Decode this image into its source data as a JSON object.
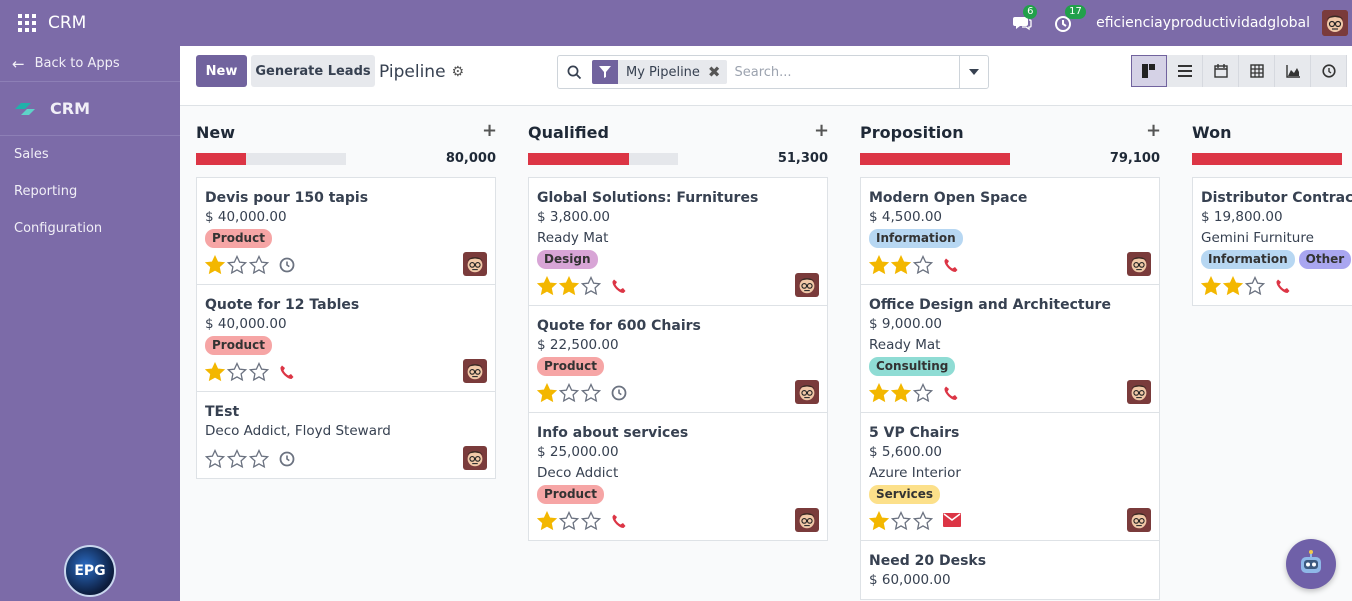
{
  "topbar": {
    "app_name": "CRM",
    "messages_count": "6",
    "activities_count": "17",
    "user_name": "eficienciayproductividadglobal"
  },
  "sidebar": {
    "back_label": "Back to Apps",
    "title": "CRM",
    "items": [
      {
        "label": "Sales"
      },
      {
        "label": "Reporting"
      },
      {
        "label": "Configuration"
      }
    ],
    "logo_text": "EPG"
  },
  "control": {
    "new_label": "New",
    "generate_label": "Generate Leads",
    "breadcrumb": "Pipeline",
    "facet_label": "My Pipeline",
    "search_placeholder": "Search..."
  },
  "colors": {
    "primary": "#71639e",
    "topbar": "#7c6ba8",
    "danger": "#dc3545",
    "star": "#f3b700"
  },
  "columns": [
    {
      "title": "New",
      "total": "80,000",
      "progress": 0.33,
      "cards": [
        {
          "name": "Devis pour 150 tapis",
          "revenue": "$ 40,000.00",
          "lines": [],
          "tags": [
            {
              "label": "Product",
              "color": "#f6a5a5"
            }
          ],
          "stars": 1,
          "activity": "clock"
        },
        {
          "name": "Quote for 12 Tables",
          "revenue": "$ 40,000.00",
          "lines": [],
          "tags": [
            {
              "label": "Product",
              "color": "#f6a5a5"
            }
          ],
          "stars": 1,
          "activity": "phone"
        },
        {
          "name": "TEst",
          "revenue": "",
          "lines": [
            "Deco Addict, Floyd Steward"
          ],
          "tags": [],
          "stars": 0,
          "activity": "clock"
        }
      ]
    },
    {
      "title": "Qualified",
      "total": "51,300",
      "progress": 0.67,
      "cards": [
        {
          "name": "Global Solutions: Furnitures",
          "revenue": "$ 3,800.00",
          "lines": [
            "Ready Mat"
          ],
          "tags": [
            {
              "label": "Design",
              "color": "#d8a5d6"
            }
          ],
          "stars": 2,
          "activity": "phone"
        },
        {
          "name": "Quote for 600 Chairs",
          "revenue": "$ 22,500.00",
          "lines": [],
          "tags": [
            {
              "label": "Product",
              "color": "#f6a5a5"
            }
          ],
          "stars": 1,
          "activity": "clock"
        },
        {
          "name": "Info about services",
          "revenue": "$ 25,000.00",
          "lines": [
            "Deco Addict"
          ],
          "tags": [
            {
              "label": "Product",
              "color": "#f6a5a5"
            }
          ],
          "stars": 1,
          "activity": "phone"
        }
      ]
    },
    {
      "title": "Proposition",
      "total": "79,100",
      "progress": 1.0,
      "cards": [
        {
          "name": "Modern Open Space",
          "revenue": "$ 4,500.00",
          "lines": [],
          "tags": [
            {
              "label": "Information",
              "color": "#b7d7f2"
            }
          ],
          "stars": 2,
          "activity": "phone"
        },
        {
          "name": "Office Design and Architecture",
          "revenue": "$ 9,000.00",
          "lines": [
            "Ready Mat"
          ],
          "tags": [
            {
              "label": "Consulting",
              "color": "#8fdcd4"
            }
          ],
          "stars": 2,
          "activity": "phone"
        },
        {
          "name": "5 VP Chairs",
          "revenue": "$ 5,600.00",
          "lines": [
            "Azure Interior"
          ],
          "tags": [
            {
              "label": "Services",
              "color": "#fce08a"
            }
          ],
          "stars": 1,
          "activity": "email"
        },
        {
          "name": "Need 20 Desks",
          "revenue": "$ 60,000.00",
          "lines": [],
          "tags": [],
          "stars": 0,
          "activity": ""
        }
      ]
    },
    {
      "title": "Won",
      "total": "",
      "progress": 1.0,
      "cards": [
        {
          "name": "Distributor Contract",
          "revenue": "$ 19,800.00",
          "lines": [
            "Gemini Furniture"
          ],
          "tags": [
            {
              "label": "Information",
              "color": "#b7d7f2"
            },
            {
              "label": "Other",
              "color": "#a9a6f0"
            }
          ],
          "stars": 2,
          "activity": "phone"
        }
      ]
    }
  ]
}
